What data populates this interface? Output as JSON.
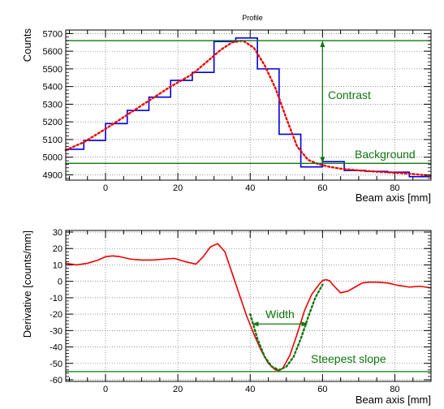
{
  "colors": {
    "step": "#0000dd",
    "fit": "#ee0000",
    "annotation": "#117711",
    "frame": "#000000",
    "grid": "#555555"
  },
  "chart_data": [
    {
      "type": "line",
      "title": "Profile",
      "xlabel": "Beam axis [mm]",
      "ylabel": "Counts",
      "xlim": [
        -11,
        90
      ],
      "ylim": [
        4870,
        5720
      ],
      "xticks": [
        0,
        20,
        40,
        60,
        80
      ],
      "yticks": [
        4900,
        5000,
        5100,
        5200,
        5300,
        5400,
        5500,
        5600,
        5700
      ],
      "grid": true,
      "series": [
        {
          "style": "step",
          "color": "#0000dd",
          "edges": [
            -11,
            -6,
            0,
            6,
            12,
            18,
            24,
            30,
            36,
            42,
            48,
            54,
            60,
            66,
            72,
            78,
            84,
            90
          ],
          "values": [
            5045,
            5095,
            5190,
            5265,
            5340,
            5435,
            5480,
            5655,
            5675,
            5500,
            5130,
            4945,
            4975,
            4925,
            4920,
            4915,
            4890
          ]
        },
        {
          "style": "dotted",
          "color": "#ee0000",
          "x": [
            -11,
            -6,
            0,
            6,
            12,
            18,
            24,
            28,
            32,
            35,
            38,
            41,
            44,
            47,
            50,
            53,
            56,
            59,
            62,
            65,
            70,
            75,
            80,
            85,
            90
          ],
          "y": [
            5040,
            5085,
            5160,
            5240,
            5320,
            5400,
            5470,
            5540,
            5610,
            5650,
            5660,
            5620,
            5520,
            5390,
            5220,
            5060,
            4985,
            4960,
            4945,
            4935,
            4925,
            4918,
            4912,
            4905,
            4895
          ]
        }
      ],
      "annotations": {
        "contrast_label": "Contrast",
        "background_label": "Background",
        "top_level": 5660,
        "background_level": 4965,
        "arrow_x": 60
      }
    },
    {
      "type": "line",
      "title": "",
      "xlabel": "Beam axis [mm]",
      "ylabel": "Derivative [counts/mm]",
      "xlim": [
        -11,
        90
      ],
      "ylim": [
        -61,
        31
      ],
      "xticks": [
        0,
        20,
        40,
        60,
        80
      ],
      "yticks": [
        -60,
        -50,
        -40,
        -30,
        -20,
        -10,
        0,
        10,
        20,
        30
      ],
      "grid": true,
      "series": [
        {
          "style": "solid",
          "color": "#ee0000",
          "x": [
            -11,
            -8,
            -5,
            -2,
            0,
            2,
            4,
            7,
            10,
            13,
            16,
            19,
            22,
            25,
            27,
            29,
            31,
            33,
            35,
            37,
            39,
            41,
            43,
            45,
            47,
            48,
            49,
            51,
            53,
            55,
            57,
            59,
            60,
            61,
            62,
            63,
            65,
            67,
            69,
            71,
            73,
            75,
            78,
            81,
            84,
            87,
            90
          ],
          "y": [
            11,
            10,
            11,
            13,
            15,
            15.5,
            15,
            13.5,
            13,
            13,
            13.5,
            14,
            12,
            10.5,
            15,
            21,
            23,
            18,
            5,
            -8,
            -21,
            -32,
            -42,
            -50,
            -54,
            -54.5,
            -53,
            -45,
            -32,
            -18,
            -8,
            -2,
            0.5,
            1,
            0.3,
            -2.5,
            -7,
            -6,
            -3.5,
            -1,
            -0.5,
            -0.5,
            -1,
            -2.5,
            -3.5,
            -3,
            -4
          ]
        },
        {
          "style": "dotted",
          "color": "#117711",
          "x": [
            40,
            42,
            44,
            46,
            48,
            50,
            52,
            54,
            56,
            58,
            60
          ],
          "y": [
            -20,
            -35,
            -46,
            -52,
            -54,
            -52,
            -46,
            -35,
            -22,
            -10,
            -2
          ]
        }
      ],
      "annotations": {
        "width_label": "Width",
        "slope_label": "Steepest slope",
        "width_x": [
          40.5,
          56
        ],
        "width_y": -26,
        "slope_level": -55
      }
    }
  ]
}
